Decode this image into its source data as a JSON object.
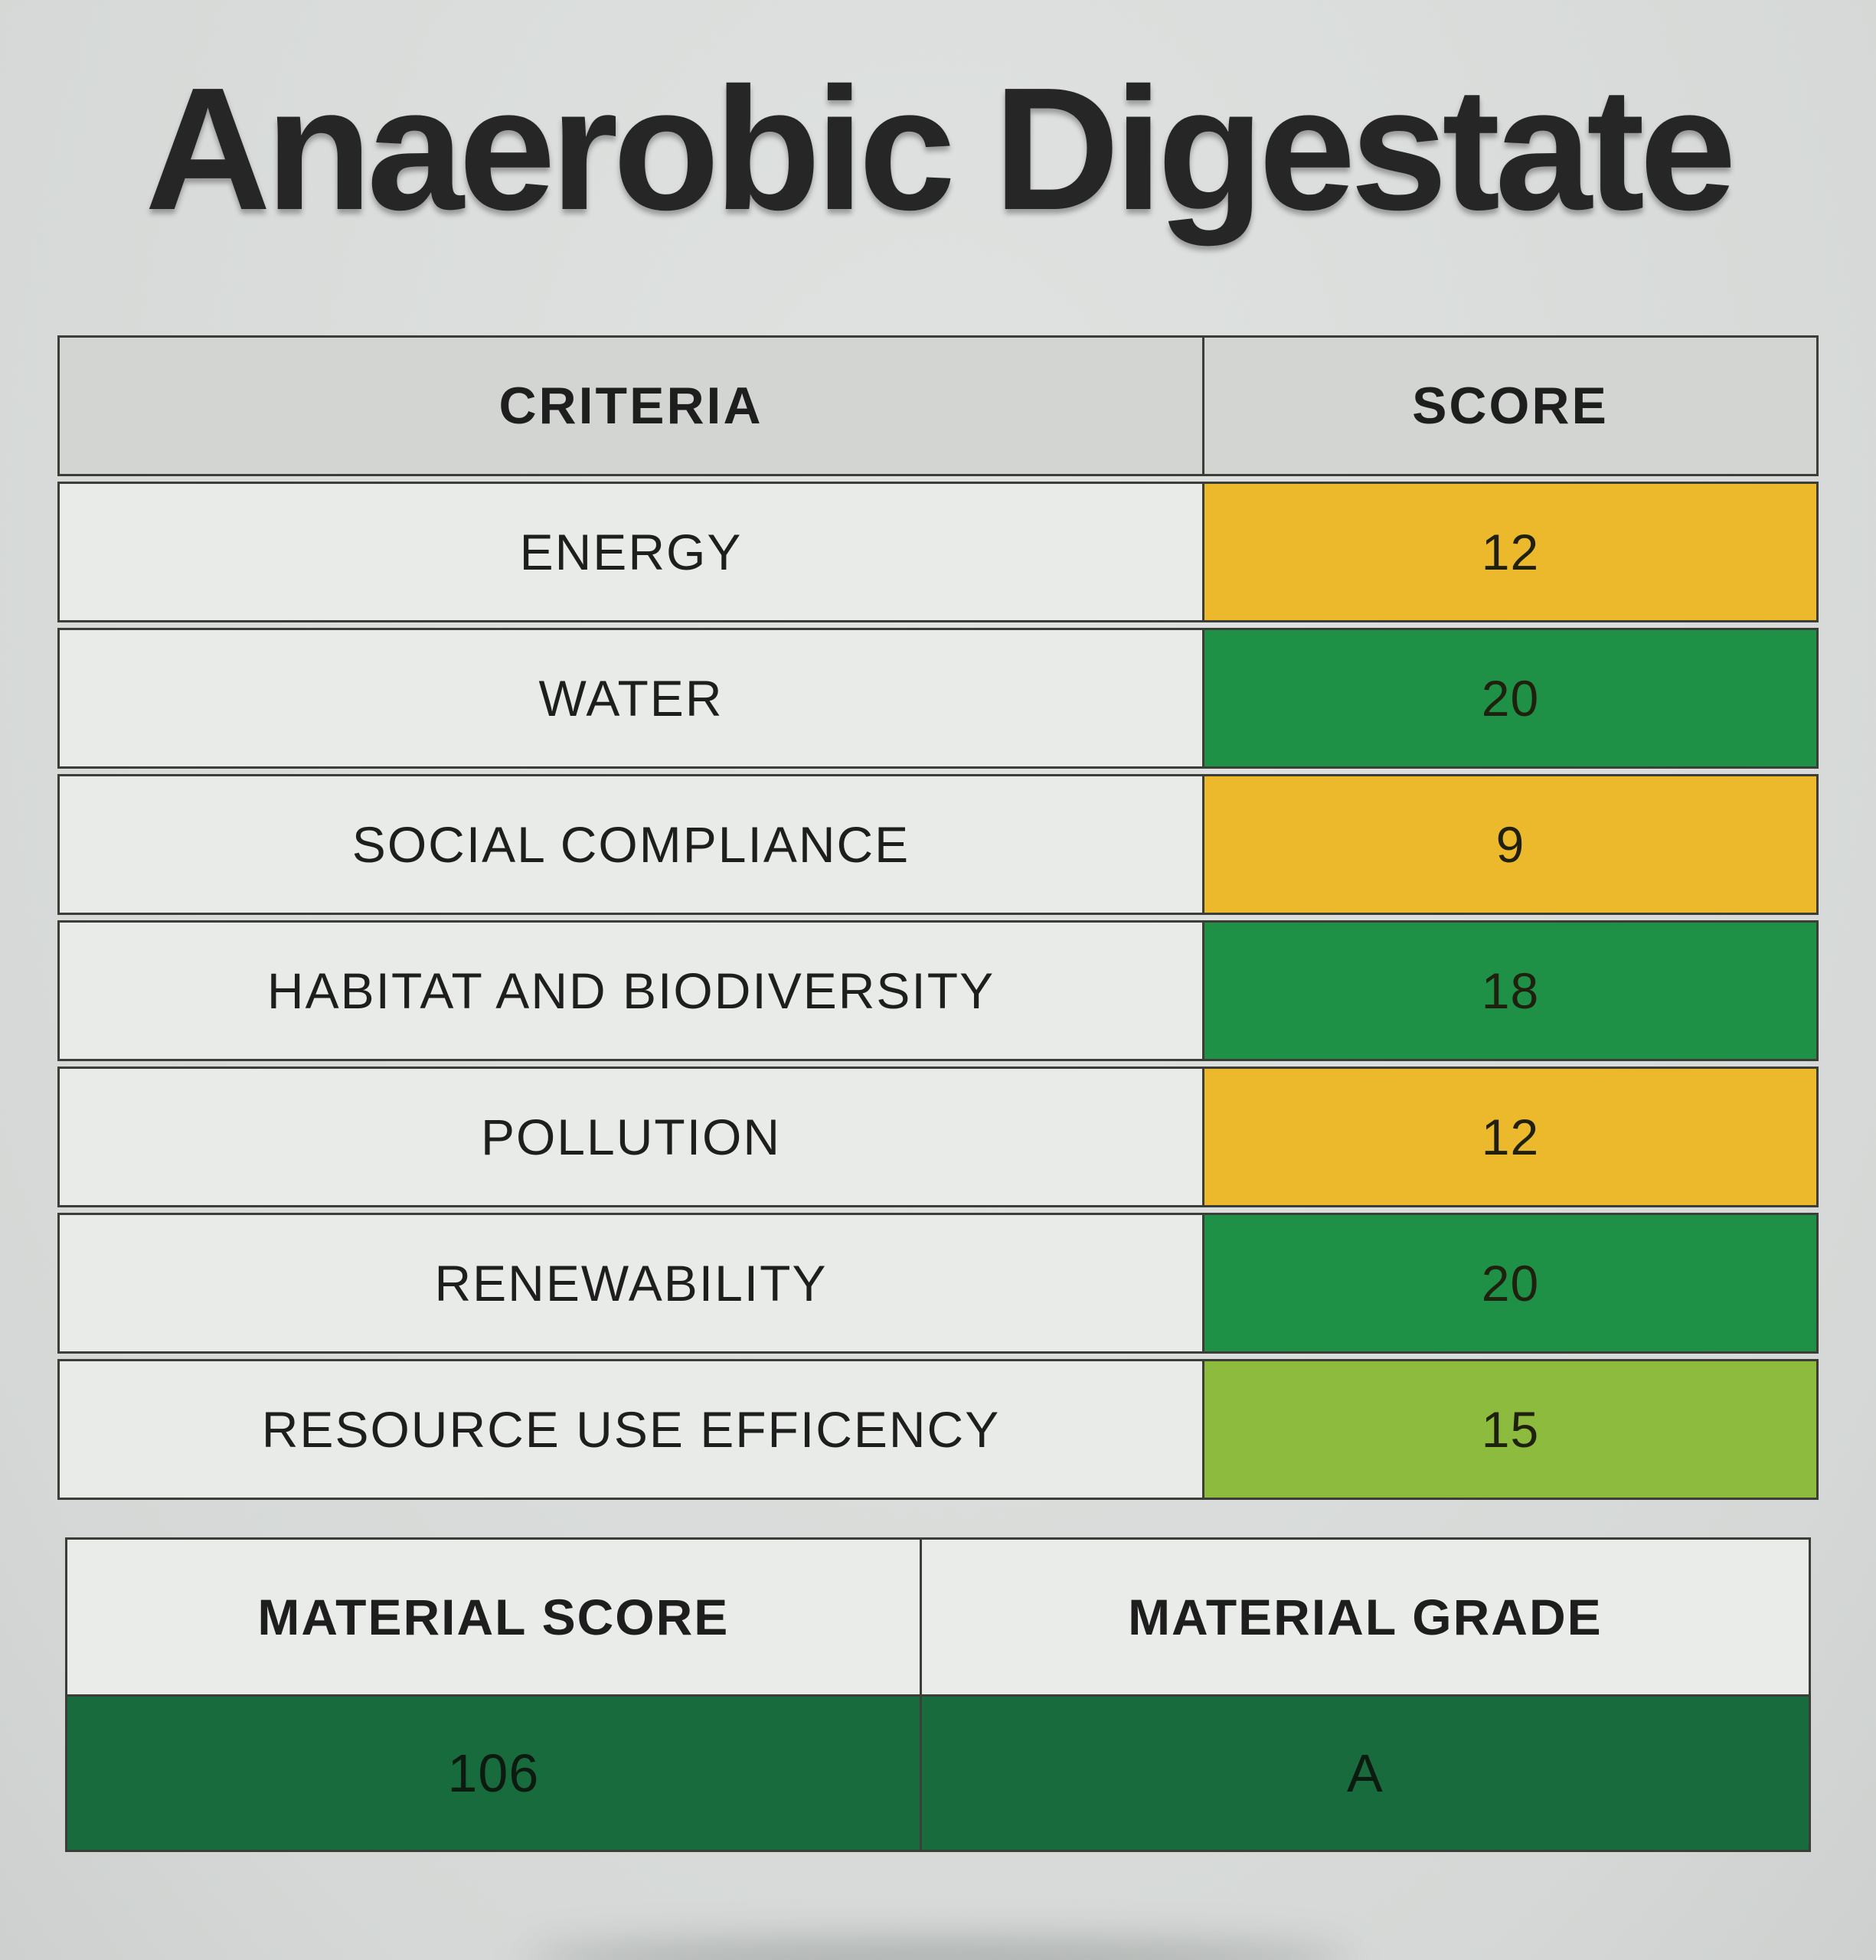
{
  "page": {
    "title": "Anaerobic Digestate"
  },
  "criteria_table": {
    "headers": {
      "criteria": "CRITERIA",
      "score": "SCORE"
    },
    "rows": [
      {
        "label": "ENERGY",
        "score": "12",
        "color": "#ecb92c"
      },
      {
        "label": "WATER",
        "score": "20",
        "color": "#1e9146"
      },
      {
        "label": "SOCIAL COMPLIANCE",
        "score": "9",
        "color": "#ecb92c"
      },
      {
        "label": "HABITAT AND BIODIVERSITY",
        "score": "18",
        "color": "#1e9146"
      },
      {
        "label": "POLLUTION",
        "score": "12",
        "color": "#ecb92c"
      },
      {
        "label": "RENEWABILITY",
        "score": "20",
        "color": "#1e9146"
      },
      {
        "label": "RESOURCE USE EFFICENCY",
        "score": "15",
        "color": "#8cbb3e"
      }
    ]
  },
  "summary_table": {
    "headers": {
      "score": "MATERIAL SCORE",
      "grade": "MATERIAL GRADE"
    },
    "values": {
      "score": "106",
      "grade": "A",
      "color": "#186b3c"
    }
  },
  "colors": {
    "paper": "#dadddb",
    "header_gray": "#d2d5d2",
    "cell_white": "#e9ebe8",
    "border": "#3d3d38",
    "text": "#1e1e1e",
    "score_yellow": "#ecb92c",
    "score_green": "#1e9146",
    "score_light_green": "#8cbb3e",
    "score_dark_green": "#186b3c"
  }
}
